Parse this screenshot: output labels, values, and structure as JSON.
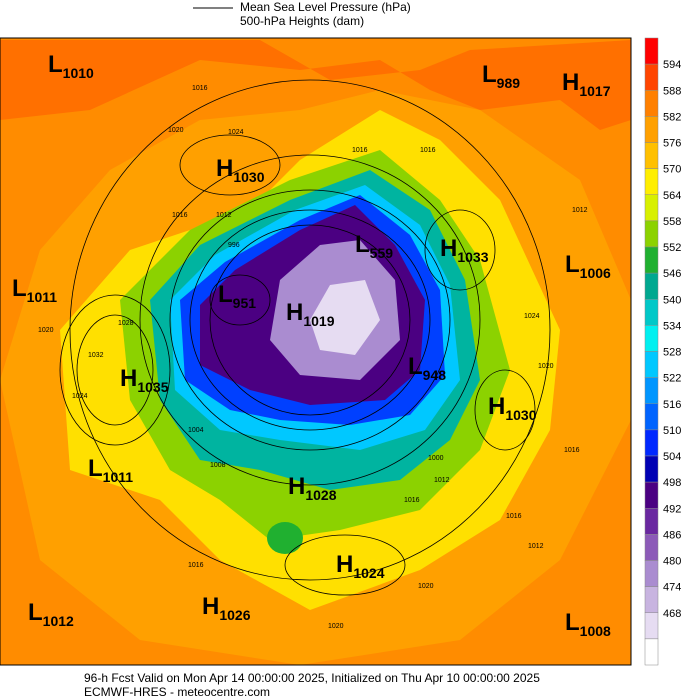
{
  "header": {
    "legend": [
      "Mean Sea Level Pressure (hPa)",
      "500-hPa Heights (dam)"
    ]
  },
  "colorbar": {
    "ticks": [
      594,
      588,
      582,
      576,
      570,
      564,
      558,
      552,
      546,
      540,
      534,
      528,
      522,
      516,
      510,
      504,
      498,
      492,
      486,
      480,
      474,
      468
    ],
    "colors": [
      "#ff0000",
      "#ff4500",
      "#ff8000",
      "#ffa000",
      "#ffc000",
      "#ffee00",
      "#d8f000",
      "#8cd200",
      "#20b030",
      "#00a890",
      "#00c8c8",
      "#00f0f0",
      "#00c8ff",
      "#0096ff",
      "#0064ff",
      "#0028ff",
      "#0000b4",
      "#4b0082",
      "#6a28a0",
      "#8c5ab8",
      "#aa8cd0",
      "#c8b4e0",
      "#e6dcf2",
      "#ffffff"
    ]
  },
  "centers": [
    {
      "letter": "L",
      "value": "1010"
    },
    {
      "letter": "L",
      "value": "989"
    },
    {
      "letter": "H",
      "value": "1017"
    },
    {
      "letter": "H",
      "value": "1030"
    },
    {
      "letter": "L",
      "value": "559"
    },
    {
      "letter": "H",
      "value": "1033"
    },
    {
      "letter": "L",
      "value": "1006"
    },
    {
      "letter": "L",
      "value": "1011"
    },
    {
      "letter": "L",
      "value": "951"
    },
    {
      "letter": "H",
      "value": "1019"
    },
    {
      "letter": "H",
      "value": "1035"
    },
    {
      "letter": "L",
      "value": "948"
    },
    {
      "letter": "H",
      "value": "1030"
    },
    {
      "letter": "L",
      "value": "1011"
    },
    {
      "letter": "H",
      "value": "1028"
    },
    {
      "letter": "H",
      "value": "1024"
    },
    {
      "letter": "L",
      "value": "1012"
    },
    {
      "letter": "H",
      "value": "1026"
    },
    {
      "letter": "L",
      "value": "1008"
    }
  ],
  "contour_labels": [
    "1016",
    "1020",
    "1024",
    "1016",
    "1016",
    "1016",
    "1012",
    "996",
    "1028",
    "1032",
    "1024",
    "1020",
    "1012",
    "1024",
    "1020",
    "1016",
    "1016",
    "1012",
    "1020",
    "1020",
    "1016",
    "1000",
    "1012",
    "1016",
    "1004",
    "1008"
  ],
  "footer": [
    "96-h Fcst Valid on Mon Apr 14 00:00:00 2025, Initialized on Thu Apr 10 00:00:00 2025",
    "ECMWF-HRES  - meteocentre.com"
  ]
}
